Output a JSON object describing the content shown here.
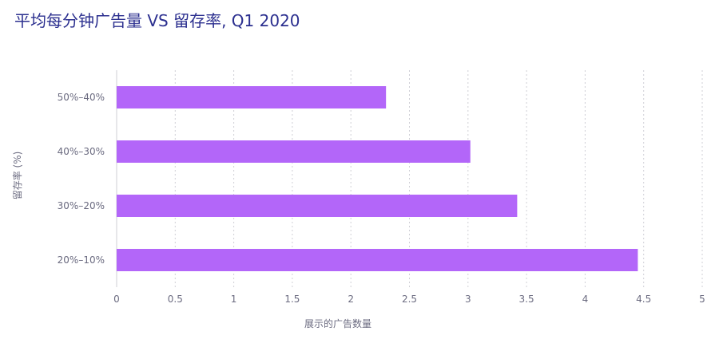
{
  "chart_data": {
    "type": "bar",
    "orientation": "horizontal",
    "title": "平均每分钟广告量 VS 留存率, Q1 2020",
    "xlabel": "展示的广告数量",
    "ylabel": "留存率 (%)",
    "categories": [
      "50%–40%",
      "40%–30%",
      "30%–20%",
      "20%–10%"
    ],
    "values": [
      2.3,
      3.02,
      3.42,
      4.45
    ],
    "xlim": [
      0,
      5
    ],
    "xticks": [
      0,
      0.5,
      1,
      1.5,
      2,
      2.5,
      3,
      3.5,
      4,
      4.5,
      5
    ],
    "xtick_labels": [
      "0",
      "0.5",
      "1",
      "1.5",
      "2",
      "2.5",
      "3",
      "3.5",
      "4",
      "4.5",
      "5"
    ],
    "grid": "vertical dotted",
    "bar_color": "#b366f9",
    "title_color": "#2b2f8f",
    "label_color": "#6b6b80"
  }
}
